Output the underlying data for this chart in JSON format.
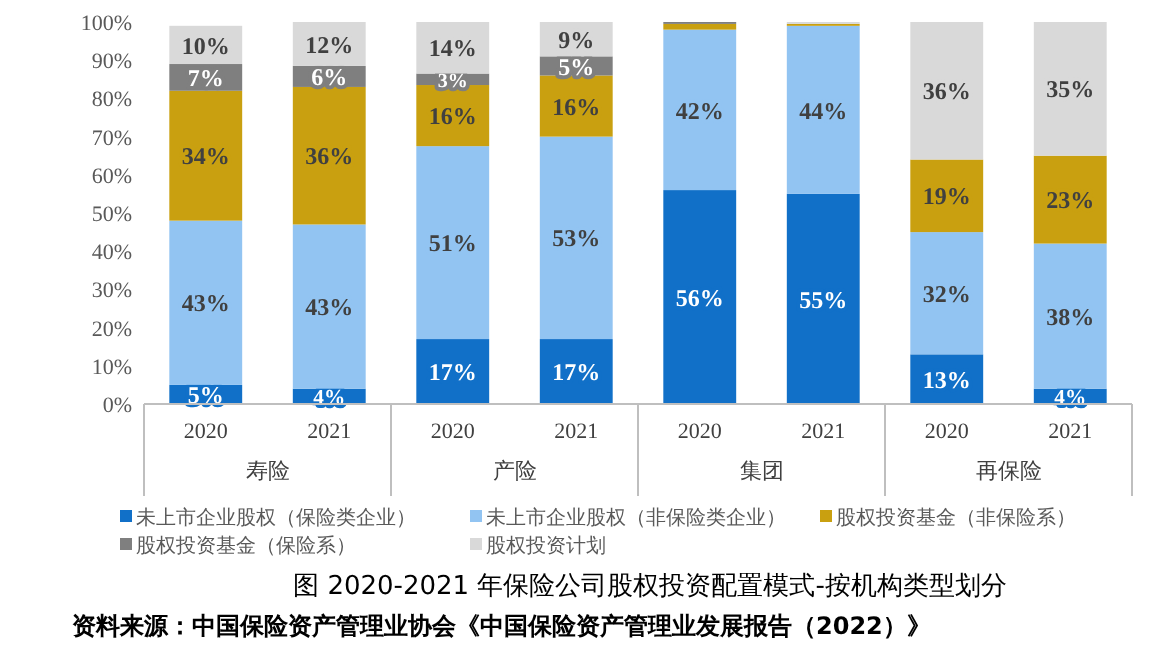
{
  "chart_data": {
    "type": "bar",
    "stacked": true,
    "title": "图 2020-2021 年保险公司股权投资配置模式-按机构类型划分",
    "annotations": [
      "寿险",
      "产险",
      "集团",
      "再保险",
      "资料来源：中国保险资产管理业协会《中国保险资产管理业发展报告（2022）》"
    ],
    "categories": [
      "2020",
      "2021",
      "2020",
      "2021",
      "2020",
      "2021",
      "2020",
      "2021"
    ],
    "series": [
      {
        "name": "未上市企业股权（保险类企业）",
        "color": "#1170c8",
        "values": [
          5,
          4,
          17,
          17,
          56,
          55,
          13,
          4
        ],
        "value_labels": [
          "5%",
          "4%",
          "17%",
          "17%",
          "56%",
          "55%",
          "13%",
          "4%"
        ]
      },
      {
        "name": "未上市企业股权（非保险类企业）",
        "color": "#92c4f2",
        "values": [
          43,
          43,
          50.5,
          53,
          42,
          44,
          32,
          38
        ],
        "value_labels": [
          "43%",
          "43%",
          "51%",
          "53%",
          "42%",
          "44%",
          "32%",
          "38%"
        ]
      },
      {
        "name": "股权投资基金（非保险系）",
        "color": "#c9a010",
        "values": [
          34,
          36,
          16,
          16,
          1.5,
          0.5,
          19,
          23
        ],
        "value_labels": [
          "34%",
          "36%",
          "16%",
          "16%",
          null,
          null,
          "19%",
          "23%"
        ]
      },
      {
        "name": "股权投资基金（保险系）",
        "color": "#7f7f7f",
        "values": [
          7,
          5.5,
          3,
          5,
          0.5,
          0,
          0,
          0
        ],
        "value_labels": [
          "7%",
          "6%",
          "3%",
          "5%",
          null,
          null,
          null,
          null
        ]
      },
      {
        "name": "股权投资计划",
        "color": "#d9d9d9",
        "values": [
          10,
          11.5,
          13.5,
          9,
          0,
          0.5,
          36,
          35
        ],
        "value_labels": [
          "10%",
          "12%",
          "14%",
          "9%",
          null,
          null,
          "36%",
          "35%"
        ]
      }
    ],
    "ylim": [
      0,
      100
    ],
    "yticks": [
      {
        "value": 0,
        "label": "0%"
      },
      {
        "value": 10,
        "label": "10%"
      },
      {
        "value": 20,
        "label": "20%"
      },
      {
        "value": 30,
        "label": "30%"
      },
      {
        "value": 40,
        "label": "40%"
      },
      {
        "value": 50,
        "label": "50%"
      },
      {
        "value": 60,
        "label": "60%"
      },
      {
        "value": 70,
        "label": "70%"
      },
      {
        "value": 80,
        "label": "80%"
      },
      {
        "value": 90,
        "label": "90%"
      },
      {
        "value": 100,
        "label": "100%"
      }
    ],
    "legend": "bottom",
    "grid": false
  }
}
